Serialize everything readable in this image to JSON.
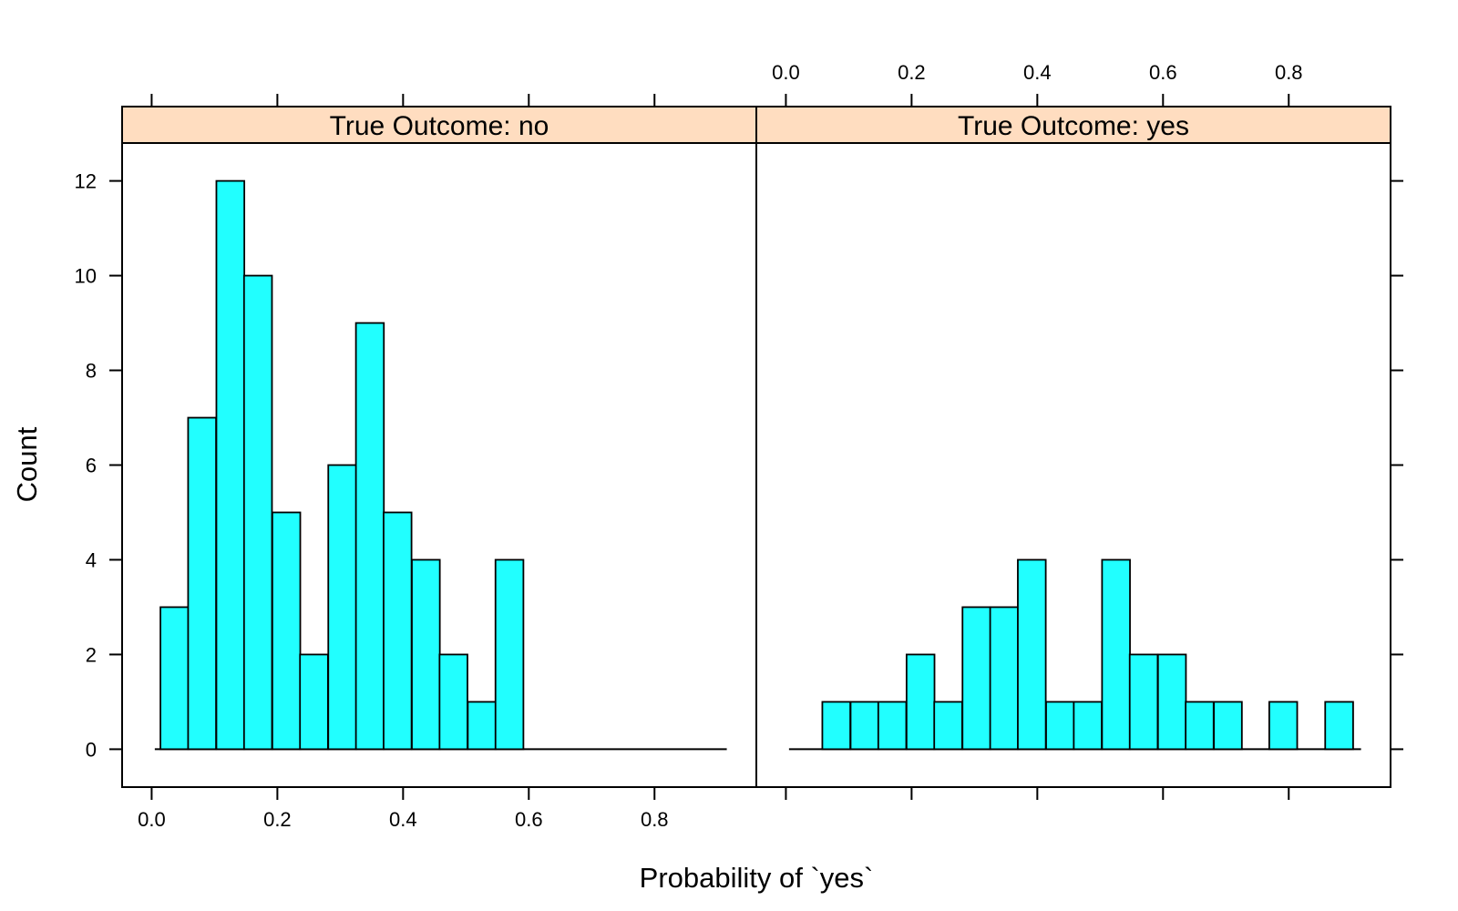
{
  "chart_data": {
    "type": "bar",
    "xlabel": "Probability of `yes`",
    "ylabel": "Count",
    "bar_color": "#21FFFF",
    "strip_color": "#FFDDC0",
    "x_ticks": [
      "0.0",
      "0.2",
      "0.4",
      "0.6",
      "0.8"
    ],
    "y_ticks": [
      "0",
      "2",
      "4",
      "6",
      "8",
      "10",
      "12"
    ],
    "xlim": [
      -0.047,
      0.962
    ],
    "ylim": [
      -0.8,
      12.8
    ],
    "bin_width": 0.04444,
    "panels": [
      {
        "strip": "True Outcome: no",
        "baseline": [
          0.005,
          0.915
        ],
        "bins": [
          {
            "x0": 0.014,
            "count": 3
          },
          {
            "x0": 0.058,
            "count": 7
          },
          {
            "x0": 0.103,
            "count": 12
          },
          {
            "x0": 0.147,
            "count": 10
          },
          {
            "x0": 0.192,
            "count": 5
          },
          {
            "x0": 0.236,
            "count": 2
          },
          {
            "x0": 0.281,
            "count": 6
          },
          {
            "x0": 0.325,
            "count": 9
          },
          {
            "x0": 0.369,
            "count": 5
          },
          {
            "x0": 0.414,
            "count": 4
          },
          {
            "x0": 0.458,
            "count": 2
          },
          {
            "x0": 0.503,
            "count": 1
          },
          {
            "x0": 0.547,
            "count": 4
          }
        ]
      },
      {
        "strip": "True Outcome: yes",
        "baseline": [
          0.005,
          0.915
        ],
        "bins": [
          {
            "x0": 0.058,
            "count": 1
          },
          {
            "x0": 0.103,
            "count": 1
          },
          {
            "x0": 0.147,
            "count": 1
          },
          {
            "x0": 0.192,
            "count": 2
          },
          {
            "x0": 0.236,
            "count": 1
          },
          {
            "x0": 0.281,
            "count": 3
          },
          {
            "x0": 0.325,
            "count": 3
          },
          {
            "x0": 0.369,
            "count": 4
          },
          {
            "x0": 0.414,
            "count": 1
          },
          {
            "x0": 0.458,
            "count": 1
          },
          {
            "x0": 0.503,
            "count": 4
          },
          {
            "x0": 0.547,
            "count": 2
          },
          {
            "x0": 0.592,
            "count": 2
          },
          {
            "x0": 0.636,
            "count": 1
          },
          {
            "x0": 0.681,
            "count": 1
          },
          {
            "x0": 0.769,
            "count": 1
          },
          {
            "x0": 0.858,
            "count": 1
          }
        ]
      }
    ]
  }
}
